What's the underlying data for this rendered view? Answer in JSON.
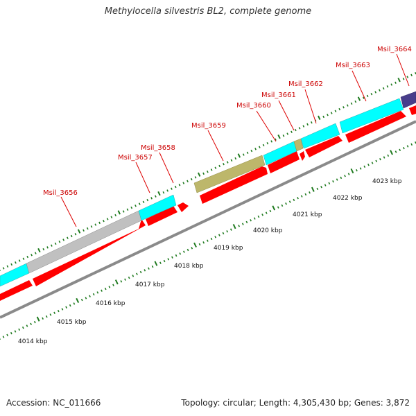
{
  "title": "Methylocella silvestris BL2, complete genome",
  "footer": {
    "accession": "Accession: NC_011666",
    "summary": "Topology: circular; Length: 4,305,430 bp; Genes: 3,872"
  },
  "colors": {
    "background": "#ffffff",
    "label_red": "#cc0000",
    "cds_red": "#ff0000",
    "cyan": "#00ffff",
    "gray": "#c0c0c0",
    "olive": "#bdb76b",
    "indigo": "#483d8b",
    "backbone": "#909090",
    "tick_green": "#1e7a1e",
    "leader_line": "#dd0000"
  },
  "genes": [
    {
      "name": "Msil_3656"
    },
    {
      "name": "Msil_3657"
    },
    {
      "name": "Msil_3658"
    },
    {
      "name": "Msil_3659"
    },
    {
      "name": "Msil_3660"
    },
    {
      "name": "Msil_3661"
    },
    {
      "name": "Msil_3662"
    },
    {
      "name": "Msil_3663"
    },
    {
      "name": "Msil_3664"
    }
  ],
  "kbp_labels": [
    "4014 kbp",
    "4015 kbp",
    "4016 kbp",
    "4017 kbp",
    "4018 kbp",
    "4019 kbp",
    "4020 kbp",
    "4021 kbp",
    "4022 kbp",
    "4023 kbp"
  ]
}
